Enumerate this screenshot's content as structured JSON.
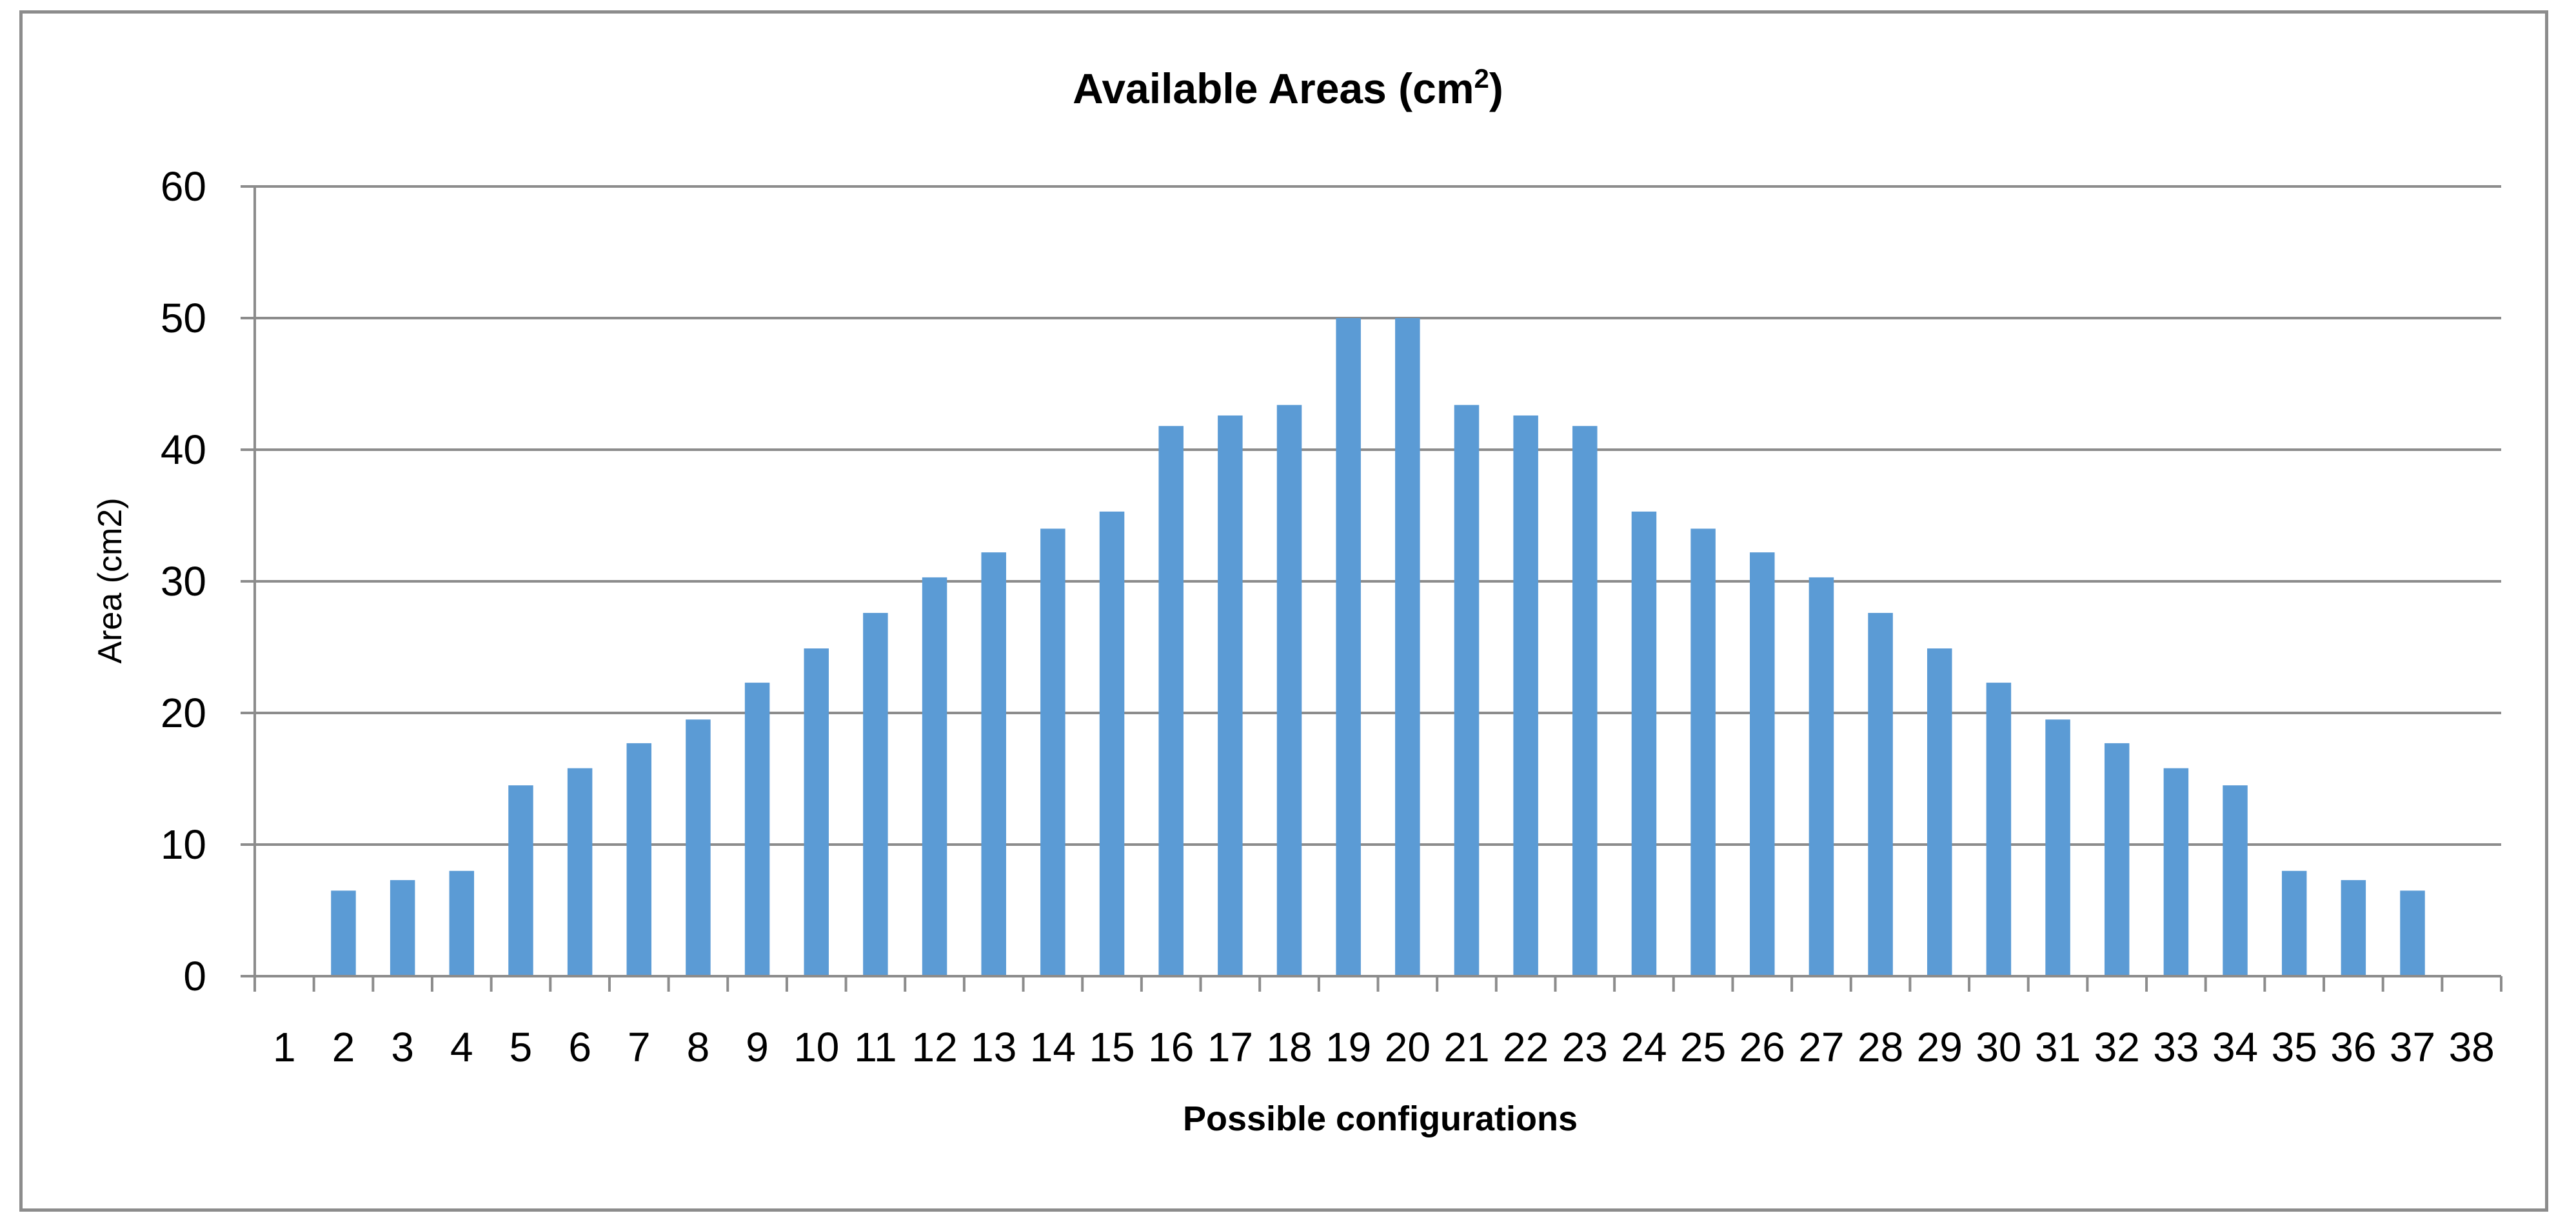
{
  "chart_data": {
    "type": "bar",
    "title": "Available Areas (cm",
    "title_superscript": "2",
    "title_suffix": ")",
    "xlabel": "Possible configurations",
    "ylabel": "Area (cm2)",
    "ylim": [
      0,
      60
    ],
    "yticks": [
      0,
      10,
      20,
      30,
      40,
      50,
      60
    ],
    "grid": true,
    "legend": "none",
    "bar_color": "#5b9bd5",
    "categories": [
      "1",
      "2",
      "3",
      "4",
      "5",
      "6",
      "7",
      "8",
      "9",
      "10",
      "11",
      "12",
      "13",
      "14",
      "15",
      "16",
      "17",
      "18",
      "19",
      "20",
      "21",
      "22",
      "23",
      "24",
      "25",
      "26",
      "27",
      "28",
      "29",
      "30",
      "31",
      "32",
      "33",
      "34",
      "35",
      "36",
      "37",
      "38"
    ],
    "values": [
      0,
      6.5,
      7.3,
      8.0,
      14.5,
      15.8,
      17.7,
      19.5,
      22.3,
      24.9,
      27.6,
      30.3,
      32.2,
      34.0,
      35.3,
      41.8,
      42.6,
      43.4,
      50.0,
      50.0,
      43.4,
      42.6,
      41.8,
      35.3,
      34.0,
      32.2,
      30.3,
      27.6,
      24.9,
      22.3,
      19.5,
      17.7,
      15.8,
      14.5,
      8.0,
      7.3,
      6.5,
      0
    ]
  }
}
